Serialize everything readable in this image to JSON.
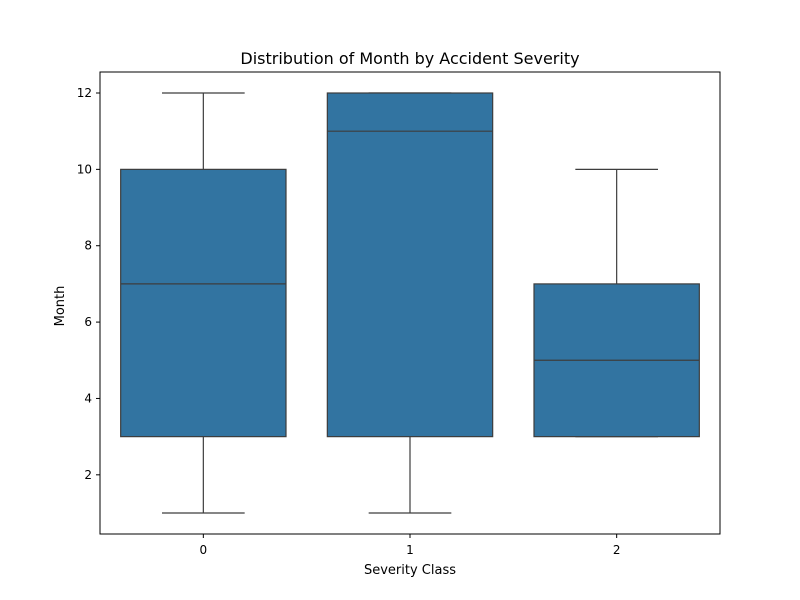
{
  "chart_data": {
    "type": "box",
    "title": "Distribution of Month by Accident Severity",
    "xlabel": "Severity Class",
    "ylabel": "Month",
    "categories": [
      "0",
      "1",
      "2"
    ],
    "boxes": [
      {
        "category": "0",
        "whisker_low": 1,
        "q1": 3,
        "median": 7,
        "q3": 10,
        "whisker_high": 12
      },
      {
        "category": "1",
        "whisker_low": 1,
        "q1": 3,
        "median": 11,
        "q3": 12,
        "whisker_high": 12
      },
      {
        "category": "2",
        "whisker_low": 3,
        "q1": 3,
        "median": 5,
        "q3": 7,
        "whisker_high": 10
      }
    ],
    "ylim": [
      0.45,
      12.55
    ],
    "yticks": [
      2,
      4,
      6,
      8,
      10,
      12
    ],
    "grid": false,
    "colors": {
      "box_fill": "#3274a1",
      "box_line": "#3d3d3d",
      "axis": "#000000"
    }
  }
}
